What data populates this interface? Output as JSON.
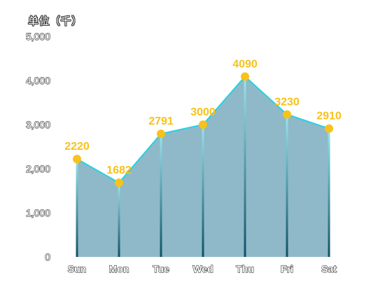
{
  "chart_data": {
    "type": "area",
    "unit_label": "单位（千）",
    "categories": [
      "Sun",
      "Mon",
      "Tue",
      "Wed",
      "Thu",
      "Fri",
      "Sat"
    ],
    "values": [
      2220,
      1682,
      2791,
      3000,
      4090,
      3230,
      2910
    ],
    "y_ticks": [
      "0",
      "1,000",
      "2,000",
      "3,000",
      "4,000",
      "5,000"
    ],
    "ylim": [
      0,
      5000
    ],
    "grid": false,
    "legend": "none",
    "colors": {
      "area_fill": "#8fb9c8",
      "line": "#27d1e3",
      "marker": "#f7c21a",
      "data_label": "#f7c21a",
      "drop_line_top": "#9be6f0",
      "drop_line_bottom": "#0e4f66"
    }
  }
}
